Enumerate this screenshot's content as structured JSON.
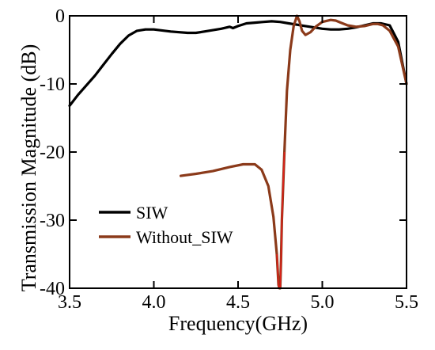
{
  "chart_data": {
    "type": "line",
    "title": "",
    "xlabel": "Frequency(GHz)",
    "ylabel": "Transmission Magnitude (dB)",
    "xlim": [
      3.5,
      5.5
    ],
    "ylim": [
      -40,
      0
    ],
    "xticks": [
      3.5,
      4.0,
      4.5,
      5.0,
      5.5
    ],
    "xtick_labels": [
      "3.5",
      "4.0",
      "4.5",
      "5.0",
      "5.5"
    ],
    "yticks": [
      0,
      -10,
      -20,
      -30,
      -40
    ],
    "ytick_labels": [
      "0",
      "-10",
      "-20",
      "-30",
      "-40"
    ],
    "grid": false,
    "legend_position": "lower-left",
    "series": [
      {
        "name": "SIW",
        "color": "#000000",
        "x": [
          3.5,
          3.55,
          3.6,
          3.65,
          3.7,
          3.75,
          3.8,
          3.85,
          3.9,
          3.95,
          4.0,
          4.1,
          4.2,
          4.25,
          4.3,
          4.4,
          4.45,
          4.47,
          4.5,
          4.55,
          4.6,
          4.65,
          4.7,
          4.75,
          4.8,
          4.85,
          4.9,
          4.95,
          5.0,
          5.05,
          5.1,
          5.15,
          5.2,
          5.25,
          5.3,
          5.35,
          5.4,
          5.45,
          5.5
        ],
        "y": [
          -13.2,
          -11.6,
          -10.2,
          -8.8,
          -7.2,
          -5.6,
          -4.1,
          -2.9,
          -2.2,
          -2.0,
          -2.0,
          -2.3,
          -2.5,
          -2.5,
          -2.3,
          -1.9,
          -1.6,
          -1.8,
          -1.5,
          -1.1,
          -1.0,
          -0.9,
          -0.8,
          -0.9,
          -1.1,
          -1.3,
          -1.5,
          -1.7,
          -1.9,
          -2.0,
          -2.0,
          -1.9,
          -1.7,
          -1.4,
          -1.1,
          -1.1,
          -1.4,
          -3.8,
          -10.0
        ]
      },
      {
        "name": "Without_SIW",
        "color": "#8B3A1A",
        "x": [
          4.16,
          4.25,
          4.35,
          4.45,
          4.53,
          4.6,
          4.64,
          4.68,
          4.71,
          4.73,
          4.74,
          4.745,
          4.75,
          4.755,
          4.76,
          4.775,
          4.79,
          4.81,
          4.83,
          4.85,
          4.865,
          4.88,
          4.9,
          4.93,
          4.96,
          5.0,
          5.05,
          5.08,
          5.11,
          5.15,
          5.2,
          5.25,
          5.3,
          5.33,
          5.36,
          5.4,
          5.45,
          5.5
        ],
        "y": [
          -23.5,
          -23.2,
          -22.8,
          -22.2,
          -21.8,
          -21.8,
          -22.6,
          -25.0,
          -29.5,
          -35.0,
          -39.5,
          -40.0,
          -40.0,
          -36.0,
          -30.0,
          -20.0,
          -11.0,
          -5.0,
          -1.5,
          0.0,
          -0.8,
          -2.2,
          -2.8,
          -2.4,
          -1.6,
          -0.9,
          -0.6,
          -0.7,
          -1.0,
          -1.4,
          -1.6,
          -1.5,
          -1.2,
          -1.2,
          -1.4,
          -2.2,
          -4.5,
          -10.0
        ]
      }
    ]
  }
}
